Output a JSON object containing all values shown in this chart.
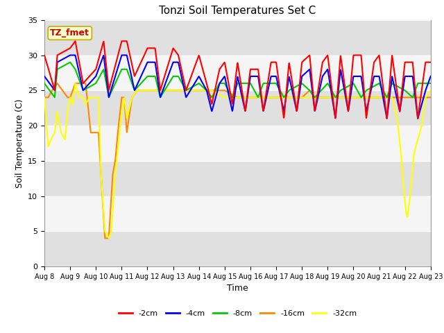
{
  "title": "Tonzi Soil Temperatures Set C",
  "xlabel": "Time",
  "ylabel": "Soil Temperature (C)",
  "ylim": [
    0,
    35
  ],
  "series_colors": {
    "-2cm": "#ff0000",
    "-4cm": "#0000ff",
    "-8cm": "#00cc00",
    "-16cm": "#ff8800",
    "-32cm": "#ffff00"
  },
  "legend_labels": [
    "-2cm",
    "-4cm",
    "-8cm",
    "-16cm",
    "-32cm"
  ],
  "plot_bg_color": "#ffffff",
  "annotation_label": "TZ_fmet",
  "annotation_box_facecolor": "#ffffcc",
  "annotation_box_edgecolor": "#ccaa00",
  "annotation_text_color": "#cc0000",
  "band_colors": [
    "#ffffff",
    "#e8e8e8"
  ],
  "band_edges": [
    0,
    5,
    10,
    15,
    20,
    25,
    30,
    35
  ],
  "x_tick_labels": [
    "Aug 8",
    "Aug 9",
    "Aug 10",
    "Aug 11",
    "Aug 12",
    "Aug 13",
    "Aug 14",
    "Aug 15",
    "Aug 16",
    "Aug 17",
    "Aug 18",
    "Aug 19",
    "Aug 20",
    "Aug 21",
    "Aug 22",
    "Aug 23"
  ],
  "yticks": [
    0,
    5,
    10,
    15,
    20,
    25,
    30,
    35
  ],
  "figsize": [
    6.4,
    4.8
  ],
  "dpi": 100
}
